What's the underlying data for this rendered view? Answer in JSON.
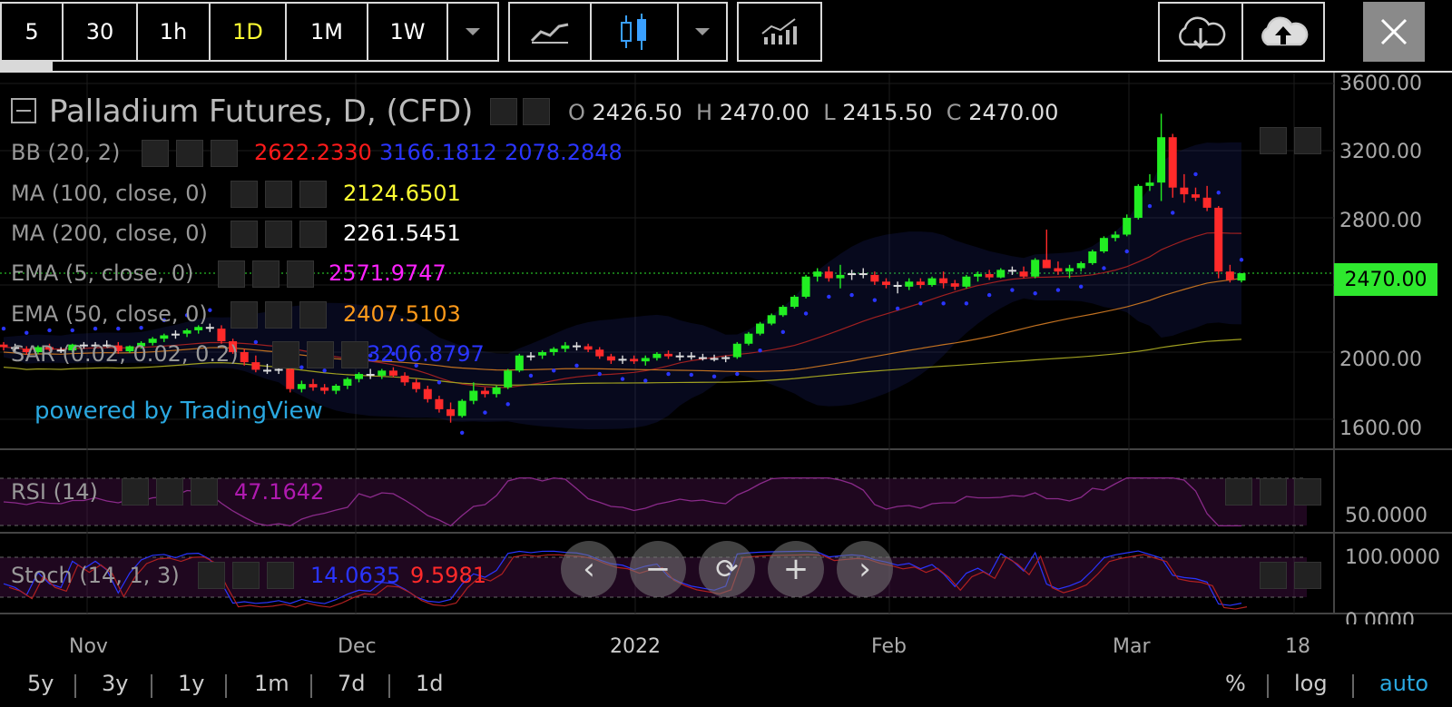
{
  "toolbar": {
    "intervals": [
      "5",
      "30",
      "1h",
      "1D",
      "1M",
      "1W"
    ],
    "active_interval": "1D",
    "icons": [
      "dropdown-icon",
      "line-chart-icon",
      "candlestick-icon",
      "dropdown-icon",
      "indicators-icon",
      "cloud-download-icon",
      "cloud-upload-icon",
      "close-icon"
    ]
  },
  "header": {
    "symbol": "Palladium Futures, D, (CFD)",
    "ohlc": {
      "o_label": "O",
      "o": "2426.50",
      "h_label": "H",
      "h": "2470.00",
      "l_label": "L",
      "l": "2415.50",
      "c_label": "C",
      "c": "2470.00"
    }
  },
  "indicators": [
    {
      "name": "BB (20, 2)",
      "values": [
        "2622.2330",
        "3166.1812",
        "2078.2848"
      ],
      "colors": [
        "#ff1a1a",
        "#2a35ff",
        "#2a35ff"
      ]
    },
    {
      "name": "MA (100, close, 0)",
      "values": [
        "2124.6501"
      ],
      "colors": [
        "#ffff33"
      ]
    },
    {
      "name": "MA (200, close, 0)",
      "values": [
        "2261.5451"
      ],
      "colors": [
        "#ffffff"
      ]
    },
    {
      "name": "EMA (5, close, 0)",
      "values": [
        "2571.9747"
      ],
      "colors": [
        "#ff22ff"
      ]
    },
    {
      "name": "EMA (50, close, 0)",
      "values": [
        "2407.5103"
      ],
      "colors": [
        "#ff9a1a"
      ]
    },
    {
      "name": "SAR (0.02, 0.02, 0.2)",
      "values": [
        "3206.8797"
      ],
      "colors": [
        "#2a35ff"
      ]
    }
  ],
  "watermark": "powered by TradingView",
  "price_axis": [
    "3600.00",
    "3200.00",
    "2800.00",
    "2000.00",
    "1600.00"
  ],
  "last_price": "2470.00",
  "rsi": {
    "name": "RSI (14)",
    "value": "47.1642",
    "axis": [
      "50.0000"
    ]
  },
  "stoch": {
    "name": "Stoch (14, 1, 3)",
    "values": [
      "14.0635",
      "9.5981"
    ],
    "axis": [
      "100.0000",
      "0.0000"
    ]
  },
  "x_axis": [
    "Nov",
    "Dec",
    "2022",
    "Feb",
    "Mar",
    "18"
  ],
  "ranges": [
    "5y",
    "3y",
    "1y",
    "1m",
    "7d",
    "1d"
  ],
  "scale_options": [
    "%",
    "log",
    "auto"
  ],
  "active_scale": "auto",
  "nav_icons": [
    "scroll-left-icon",
    "zoom-out-icon",
    "reset-icon",
    "zoom-in-icon",
    "scroll-right-icon"
  ],
  "colors": {
    "up": "#22ee22",
    "down": "#ff2a2a",
    "accent": "#ffff33",
    "watermark": "#2aa8e0",
    "price_tag": "#2ee82e"
  },
  "chart_data": {
    "type": "candlestick",
    "title": "Palladium Futures, D, (CFD)",
    "ylim": [
      1450,
      3650
    ],
    "candles": [
      [
        2045,
        2060,
        2010,
        2030
      ],
      [
        2030,
        2050,
        2000,
        2020
      ],
      [
        2020,
        2035,
        1985,
        2000
      ],
      [
        2000,
        2040,
        1990,
        2030
      ],
      [
        2030,
        2050,
        2005,
        2015
      ],
      [
        2015,
        2030,
        1995,
        2010
      ],
      [
        2010,
        2050,
        2000,
        2045
      ],
      [
        2045,
        2060,
        2020,
        2035
      ],
      [
        2035,
        2060,
        2020,
        2045
      ],
      [
        2045,
        2070,
        2030,
        2040
      ],
      [
        2040,
        2060,
        1990,
        2005
      ],
      [
        2005,
        2040,
        1995,
        2035
      ],
      [
        2035,
        2065,
        2020,
        2055
      ],
      [
        2055,
        2090,
        2040,
        2080
      ],
      [
        2080,
        2110,
        2060,
        2100
      ],
      [
        2100,
        2130,
        2080,
        2110
      ],
      [
        2110,
        2140,
        2090,
        2130
      ],
      [
        2130,
        2160,
        2110,
        2150
      ],
      [
        2150,
        2170,
        2120,
        2140
      ],
      [
        2140,
        2160,
        2050,
        2065
      ],
      [
        2065,
        2080,
        1990,
        2000
      ],
      [
        2000,
        2020,
        1920,
        1940
      ],
      [
        1940,
        1980,
        1880,
        1895
      ],
      [
        1895,
        1930,
        1870,
        1890
      ],
      [
        1890,
        1920,
        1870,
        1900
      ],
      [
        1900,
        1920,
        1760,
        1780
      ],
      [
        1780,
        1830,
        1760,
        1810
      ],
      [
        1810,
        1840,
        1770,
        1790
      ],
      [
        1790,
        1810,
        1750,
        1770
      ],
      [
        1770,
        1810,
        1750,
        1800
      ],
      [
        1800,
        1850,
        1780,
        1840
      ],
      [
        1840,
        1880,
        1820,
        1870
      ],
      [
        1870,
        1900,
        1840,
        1860
      ],
      [
        1860,
        1900,
        1840,
        1890
      ],
      [
        1890,
        1910,
        1850,
        1860
      ],
      [
        1860,
        1880,
        1800,
        1820
      ],
      [
        1820,
        1840,
        1760,
        1780
      ],
      [
        1780,
        1800,
        1700,
        1720
      ],
      [
        1720,
        1740,
        1640,
        1660
      ],
      [
        1660,
        1700,
        1580,
        1620
      ],
      [
        1620,
        1720,
        1610,
        1710
      ],
      [
        1710,
        1820,
        1690,
        1770
      ],
      [
        1770,
        1790,
        1730,
        1750
      ],
      [
        1750,
        1800,
        1730,
        1790
      ],
      [
        1790,
        1900,
        1780,
        1890
      ],
      [
        1890,
        1990,
        1880,
        1980
      ],
      [
        1980,
        2000,
        1950,
        1980
      ],
      [
        1980,
        2010,
        1960,
        2000
      ],
      [
        2000,
        2030,
        1980,
        2020
      ],
      [
        2020,
        2060,
        2000,
        2040
      ],
      [
        2040,
        2060,
        2010,
        2035
      ],
      [
        2035,
        2050,
        2000,
        2015
      ],
      [
        2015,
        2030,
        1960,
        1975
      ],
      [
        1975,
        1990,
        1930,
        1950
      ],
      [
        1950,
        1980,
        1930,
        1960
      ],
      [
        1960,
        1980,
        1930,
        1945
      ],
      [
        1945,
        1980,
        1920,
        1965
      ],
      [
        1965,
        2000,
        1950,
        1990
      ],
      [
        1990,
        2010,
        1960,
        1975
      ],
      [
        1975,
        2000,
        1950,
        1980
      ],
      [
        1980,
        2000,
        1955,
        1970
      ],
      [
        1970,
        1990,
        1950,
        1965
      ],
      [
        1965,
        1985,
        1945,
        1960
      ],
      [
        1960,
        1980,
        1940,
        1970
      ],
      [
        1970,
        2060,
        1960,
        2050
      ],
      [
        2050,
        2120,
        2040,
        2110
      ],
      [
        2110,
        2180,
        2100,
        2170
      ],
      [
        2170,
        2230,
        2160,
        2220
      ],
      [
        2220,
        2280,
        2210,
        2270
      ],
      [
        2270,
        2340,
        2260,
        2330
      ],
      [
        2330,
        2460,
        2320,
        2450
      ],
      [
        2450,
        2500,
        2420,
        2480
      ],
      [
        2480,
        2510,
        2420,
        2440
      ],
      [
        2440,
        2520,
        2380,
        2460
      ],
      [
        2460,
        2490,
        2430,
        2470
      ],
      [
        2470,
        2500,
        2440,
        2460
      ],
      [
        2460,
        2480,
        2400,
        2420
      ],
      [
        2420,
        2440,
        2380,
        2400
      ],
      [
        2400,
        2420,
        2350,
        2390
      ],
      [
        2390,
        2440,
        2370,
        2420
      ],
      [
        2420,
        2440,
        2380,
        2400
      ],
      [
        2400,
        2450,
        2390,
        2440
      ],
      [
        2440,
        2480,
        2380,
        2410
      ],
      [
        2410,
        2430,
        2370,
        2390
      ],
      [
        2390,
        2460,
        2380,
        2450
      ],
      [
        2450,
        2480,
        2420,
        2465
      ],
      [
        2465,
        2490,
        2430,
        2445
      ],
      [
        2445,
        2500,
        2440,
        2490
      ],
      [
        2490,
        2510,
        2460,
        2480
      ],
      [
        2480,
        2510,
        2440,
        2450
      ],
      [
        2450,
        2560,
        2440,
        2550
      ],
      [
        2550,
        2730,
        2500,
        2500
      ],
      [
        2500,
        2540,
        2460,
        2480
      ],
      [
        2480,
        2520,
        2440,
        2500
      ],
      [
        2500,
        2540,
        2480,
        2530
      ],
      [
        2530,
        2610,
        2520,
        2600
      ],
      [
        2600,
        2690,
        2590,
        2680
      ],
      [
        2680,
        2720,
        2660,
        2700
      ],
      [
        2700,
        2820,
        2690,
        2800
      ],
      [
        2800,
        3000,
        2790,
        2990
      ],
      [
        2990,
        3060,
        2960,
        3010
      ],
      [
        3010,
        3420,
        2900,
        3280
      ],
      [
        3280,
        3300,
        2920,
        2980
      ],
      [
        2980,
        3060,
        2890,
        2940
      ],
      [
        2940,
        2980,
        2900,
        2920
      ],
      [
        2920,
        2990,
        2840,
        2860
      ],
      [
        2860,
        2870,
        2440,
        2480
      ],
      [
        2480,
        2520,
        2415,
        2430
      ],
      [
        2426.5,
        2470,
        2415.5,
        2470
      ]
    ],
    "rsi_axis": [
      "50.0000"
    ],
    "stoch_axis": [
      "100.0000",
      "0.0000"
    ]
  }
}
